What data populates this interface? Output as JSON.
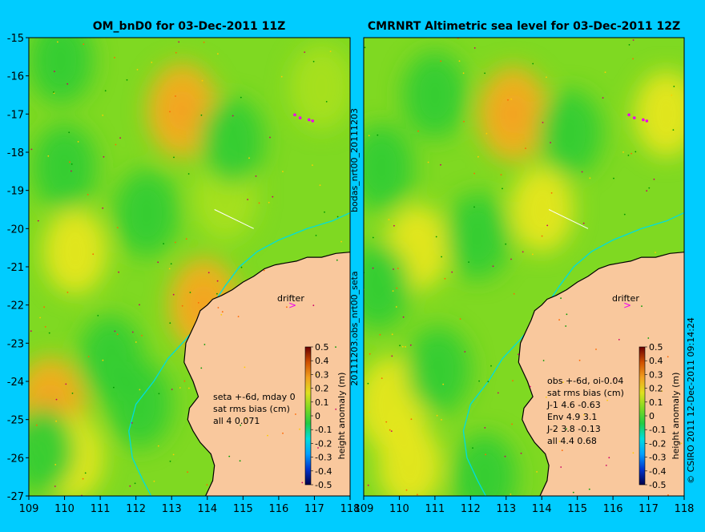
{
  "colors": {
    "background": "#00ccff",
    "land": "#f9c89d",
    "coast": "#000000",
    "shelf": "#00dddd",
    "drifter": "#ee00ee",
    "green": "#33cc33",
    "yellow_green": "#a8e020",
    "yellow": "#e6e620",
    "orange": "#f0b020"
  },
  "chart_data": [
    {
      "type": "heatmap",
      "title": "OM_bnD0 for 03-Dec-2011 11Z",
      "xlim": [
        109,
        118
      ],
      "ylim": [
        -27,
        -15
      ],
      "xticks": [
        "109",
        "110",
        "111",
        "112",
        "113",
        "114",
        "115",
        "116",
        "117",
        "118"
      ],
      "yticks": [
        "-15",
        "-16",
        "-17",
        "-18",
        "-19",
        "-20",
        "-21",
        "-22",
        "-23",
        "-24",
        "-25",
        "-26",
        "-27"
      ],
      "annotation_lines": [
        "seta +-6d, mday 0",
        "sat rms bias (cm)",
        "all 4 0.071"
      ],
      "drifter_label": "drifter",
      "drifter_position": [
        116.5,
        -21.9
      ],
      "drifter_cluster": [
        116.6,
        -17.1
      ],
      "anomaly_blobs": [
        {
          "center": [
            113.3,
            -16.9
          ],
          "value": 0.25
        },
        {
          "center": [
            109.6,
            -24.6
          ],
          "value": 0.3
        },
        {
          "center": [
            110.2,
            -26.0
          ],
          "value": 0.15
        },
        {
          "center": [
            110.3,
            -20.6
          ],
          "value": 0.12
        },
        {
          "center": [
            117.2,
            -16.3
          ],
          "value": 0.05
        },
        {
          "center": [
            113.9,
            -22.0
          ],
          "value": 0.3
        },
        {
          "center": [
            114.5,
            -19.2
          ],
          "value": 0.05
        },
        {
          "center": [
            109.9,
            -15.6
          ],
          "value": -0.1
        },
        {
          "center": [
            110.0,
            -18.4
          ],
          "value": -0.1
        },
        {
          "center": [
            114.7,
            -17.7
          ],
          "value": -0.1
        },
        {
          "center": [
            112.3,
            -19.6
          ],
          "value": -0.1
        },
        {
          "center": [
            111.3,
            -23.4
          ],
          "value": -0.1
        },
        {
          "center": [
            112.1,
            -24.6
          ],
          "value": -0.1
        },
        {
          "center": [
            109.4,
            -25.8
          ],
          "value": -0.1
        }
      ]
    },
    {
      "type": "heatmap",
      "title": "CMRNRT Altimetric sea level  for 03-Dec-2011 12Z",
      "xlim": [
        109,
        118
      ],
      "ylim": [
        -27,
        -15
      ],
      "xticks": [
        "109",
        "110",
        "111",
        "112",
        "113",
        "114",
        "115",
        "116",
        "117",
        "118"
      ],
      "annotation_lines": [
        "obs +-6d, oi-0.04",
        "sat rms bias (cm)",
        "J-1   4.6 -0.63",
        "Env   4.9 3.1",
        "J-2   3.8 -0.13",
        "all 4.4 0.68"
      ],
      "drifter_label": "drifter",
      "drifter_position": [
        116.5,
        -21.9
      ],
      "drifter_cluster": [
        116.6,
        -17.1
      ],
      "anomaly_blobs": [
        {
          "center": [
            113.2,
            -17.0
          ],
          "value": 0.3
        },
        {
          "center": [
            109.8,
            -24.6
          ],
          "value": 0.2
        },
        {
          "center": [
            110.3,
            -26.2
          ],
          "value": 0.1
        },
        {
          "center": [
            110.5,
            -20.5
          ],
          "value": 0.1
        },
        {
          "center": [
            117.5,
            -17.0
          ],
          "value": 0.15
        },
        {
          "center": [
            114.0,
            -19.5
          ],
          "value": 0.1
        },
        {
          "center": [
            109.5,
            -18.4
          ],
          "value": -0.1
        },
        {
          "center": [
            111.0,
            -16.5
          ],
          "value": -0.05
        },
        {
          "center": [
            114.8,
            -17.5
          ],
          "value": -0.1
        },
        {
          "center": [
            112.2,
            -20.2
          ],
          "value": -0.15
        },
        {
          "center": [
            111.1,
            -23.7
          ],
          "value": -0.15
        },
        {
          "center": [
            112.4,
            -26.5
          ],
          "value": -0.1
        },
        {
          "center": [
            109.4,
            -21.5
          ],
          "value": -0.05
        }
      ]
    }
  ],
  "colorbar": {
    "ticks": [
      "0.5",
      "0.4",
      "0.3",
      "0.2",
      "0.1",
      "0",
      "-0.1",
      "-0.2",
      "-0.3",
      "-0.4",
      "-0.5"
    ],
    "label": "height anomaly (m)",
    "stops": [
      "#00004a",
      "#0033cc",
      "#00a0ff",
      "#00dddd",
      "#22cc44",
      "#7fd922",
      "#e0e020",
      "#f2a020",
      "#d05000",
      "#6a0000"
    ]
  },
  "side_labels": {
    "middle_top": "bodas_nrt00_20111203",
    "middle_bottom": "20111203.obs_nrt00_seta",
    "right": "© CSIRO 2011  12-Dec-2011 09:14:24"
  }
}
